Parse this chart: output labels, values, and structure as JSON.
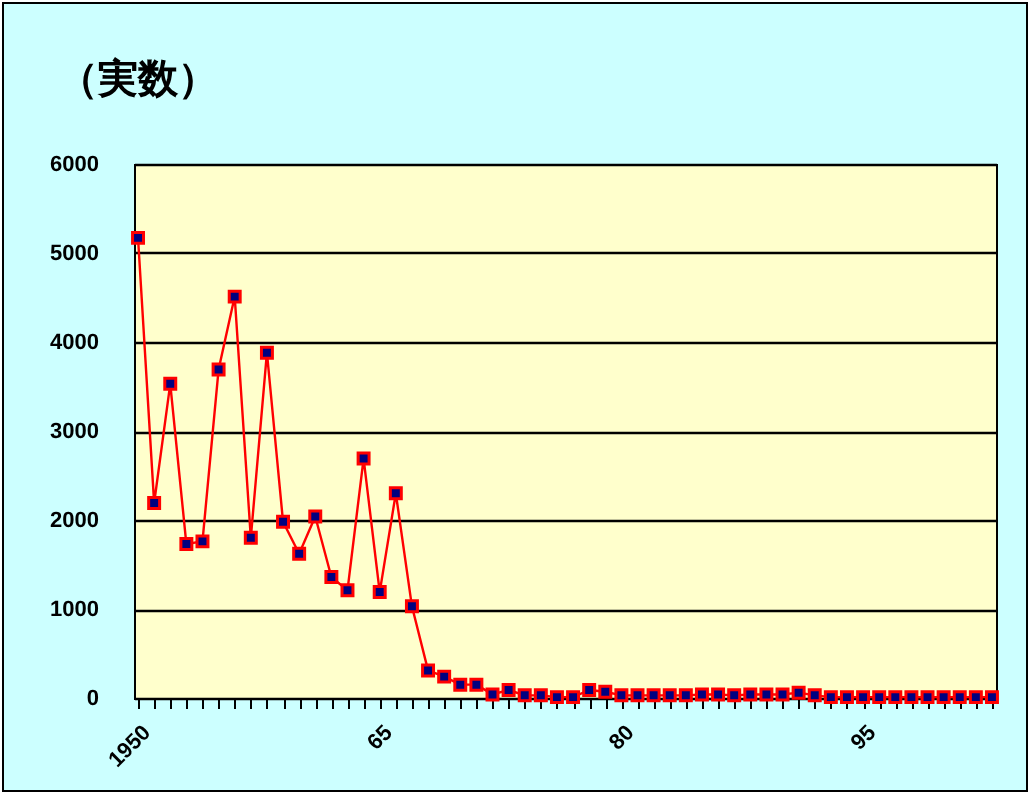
{
  "chart_data": {
    "type": "line",
    "title": "（実数）",
    "categories": [
      "1950",
      null,
      null,
      null,
      null,
      null,
      null,
      null,
      null,
      null,
      null,
      null,
      null,
      null,
      null,
      "65",
      null,
      null,
      null,
      null,
      null,
      null,
      null,
      null,
      null,
      null,
      null,
      null,
      null,
      null,
      "80",
      null,
      null,
      null,
      null,
      null,
      null,
      null,
      null,
      null,
      null,
      null,
      null,
      null,
      null,
      "95",
      null,
      null,
      null,
      null,
      null,
      null,
      null,
      null
    ],
    "series": [
      {
        "color": "#ff0000",
        "values": [
          5170,
          2190,
          3530,
          1730,
          1760,
          3690,
          4510,
          1800,
          3880,
          1980,
          1620,
          2040,
          1360,
          1210,
          2690,
          1190,
          2300,
          1030,
          310,
          240,
          150,
          150,
          40,
          90,
          30,
          30,
          10,
          10,
          90,
          70,
          30,
          30,
          30,
          30,
          30,
          40,
          40,
          30,
          40,
          40,
          40,
          60,
          30,
          10,
          10,
          10,
          10,
          10,
          10,
          10,
          10,
          10,
          10,
          10
        ]
      }
    ],
    "ylim": [
      0,
      6000
    ],
    "yticks": [
      0,
      1000,
      2000,
      3000,
      4000,
      5000,
      6000
    ],
    "grid": "y",
    "marker": "square",
    "line_style": "solid",
    "legend": false
  }
}
